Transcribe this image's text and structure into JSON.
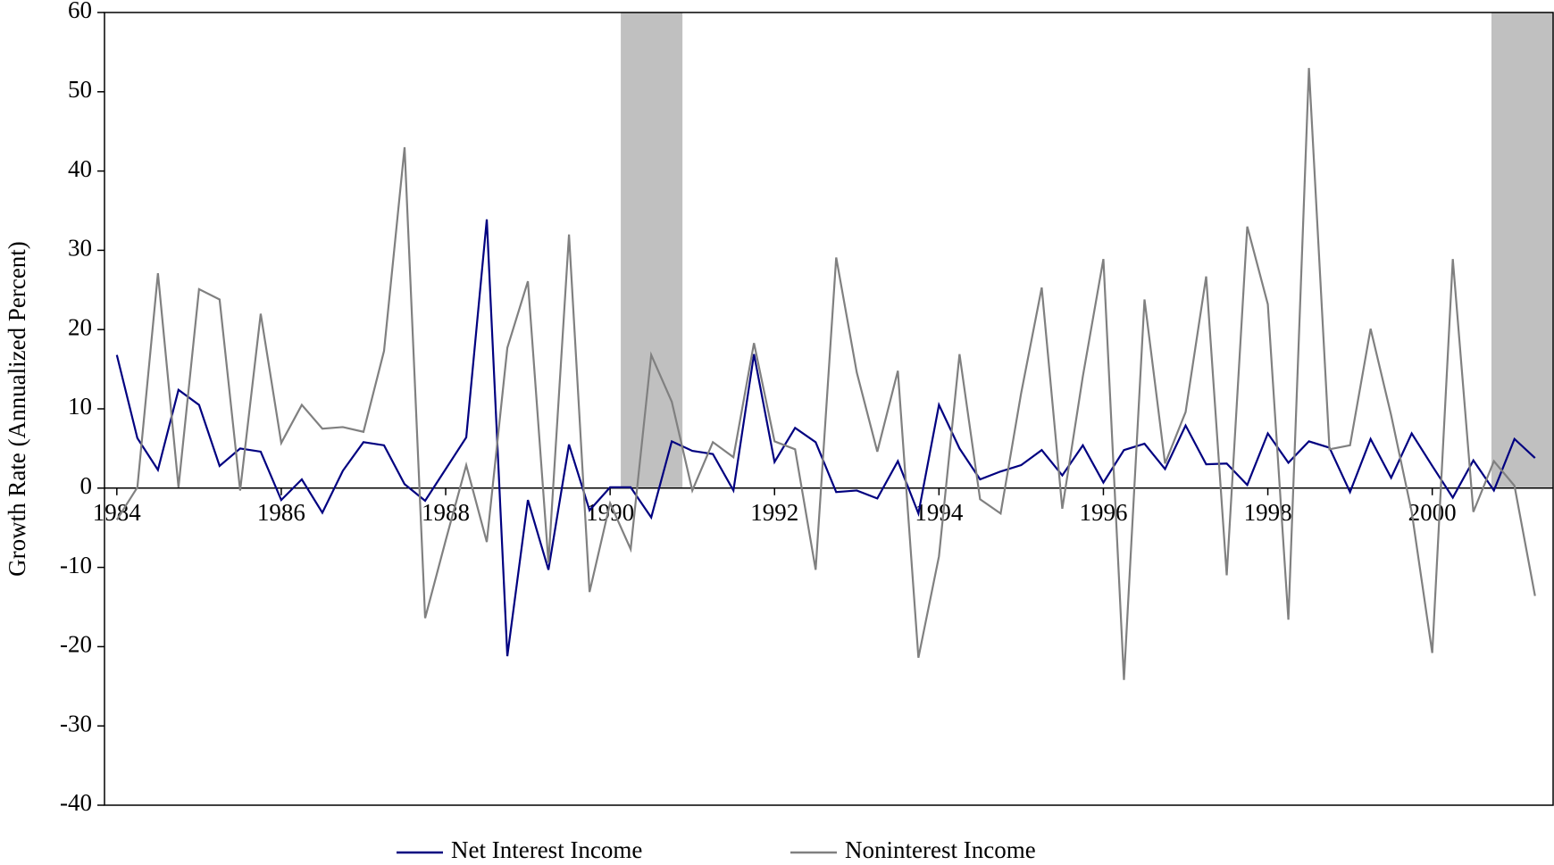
{
  "chart_data": {
    "type": "line",
    "y_label": "Growth Rate (Annualized Percent)",
    "x": [
      1984,
      1984.25,
      1984.5,
      1984.75,
      1985,
      1985.25,
      1985.5,
      1985.75,
      1986,
      1986.25,
      1986.5,
      1986.75,
      1987,
      1987.25,
      1987.5,
      1987.75,
      1988,
      1988.25,
      1988.5,
      1988.75,
      1989,
      1989.25,
      1989.5,
      1989.75,
      1990,
      1990.25,
      1990.5,
      1990.75,
      1991,
      1991.25,
      1991.5,
      1991.75,
      1992,
      1992.25,
      1992.5,
      1992.75,
      1993,
      1993.25,
      1993.5,
      1993.75,
      1994,
      1994.25,
      1994.5,
      1994.75,
      1995,
      1995.25,
      1995.5,
      1995.75,
      1996,
      1996.25,
      1996.5,
      1996.75,
      1997,
      1997.25,
      1997.5,
      1997.75,
      1998,
      1998.25,
      1998.5,
      1998.75,
      1999,
      1999.25,
      1999.5,
      1999.75,
      2000,
      2000.25,
      2000.5,
      2000.75,
      2001,
      2001.25
    ],
    "series": [
      {
        "name": "Net Interest Income",
        "color": "#000080",
        "values": [
          16.8,
          6.3,
          2.3,
          12.4,
          10.5,
          2.8,
          5.0,
          4.6,
          -1.5,
          1.1,
          -3.1,
          2.2,
          5.8,
          5.4,
          0.5,
          -1.6,
          2.4,
          6.4,
          33.9,
          -21.2,
          -1.5,
          -10.3,
          5.5,
          -2.8,
          0.1,
          0.1,
          -3.7,
          5.9,
          4.7,
          4.3,
          -0.3,
          16.9,
          3.3,
          7.6,
          5.8,
          -0.5,
          -0.3,
          -1.3,
          3.4,
          -3.2,
          10.5,
          5.0,
          1.1,
          2.1,
          2.9,
          4.8,
          1.6,
          5.4,
          0.7,
          4.8,
          5.6,
          2.4,
          7.9,
          3.0,
          3.1,
          0.4,
          6.9,
          3.2,
          5.9,
          5.1,
          -0.5,
          6.2,
          1.3,
          6.9,
          2.8,
          -1.2,
          3.5,
          -0.3,
          6.2,
          3.8
        ]
      },
      {
        "name": "Noninterest Income",
        "color": "#808080",
        "values": [
          -4.0,
          0.1,
          27.1,
          0.1,
          25.1,
          23.8,
          -0.3,
          22.0,
          5.7,
          10.5,
          7.5,
          7.7,
          7.1,
          17.3,
          43.0,
          -16.4,
          -6.6,
          2.9,
          -6.8,
          17.7,
          26.1,
          -9.4,
          32.0,
          -13.1,
          -1.9,
          -7.7,
          16.8,
          10.9,
          -0.3,
          5.8,
          3.9,
          18.3,
          5.9,
          4.9,
          -10.3,
          29.1,
          14.6,
          4.6,
          14.8,
          -21.4,
          -8.6,
          16.9,
          -1.4,
          -3.2,
          12.0,
          25.3,
          -2.6,
          14.1,
          28.9,
          -24.2,
          23.8,
          3.1,
          9.6,
          26.7,
          -11.0,
          33.0,
          23.2,
          -16.6,
          53.0,
          4.9,
          5.4,
          20.1,
          9.2,
          -3.0,
          -20.8,
          28.9,
          -3.0,
          3.4,
          0.3,
          -13.6
        ]
      }
    ],
    "recessions": [
      [
        1990.13,
        1990.88
      ],
      [
        2000.72,
        2001.47
      ]
    ],
    "recession_color": "#c0c0c0",
    "xlim": [
      1983.85,
      2001.47
    ],
    "xticks": [
      1984,
      1986,
      1988,
      1990,
      1992,
      1994,
      1996,
      1998,
      2000
    ],
    "ylim": [
      -40,
      60
    ],
    "yticks": [
      -40,
      -30,
      -20,
      -10,
      0,
      10,
      20,
      30,
      40,
      50,
      60
    ],
    "legend": "bottom"
  }
}
